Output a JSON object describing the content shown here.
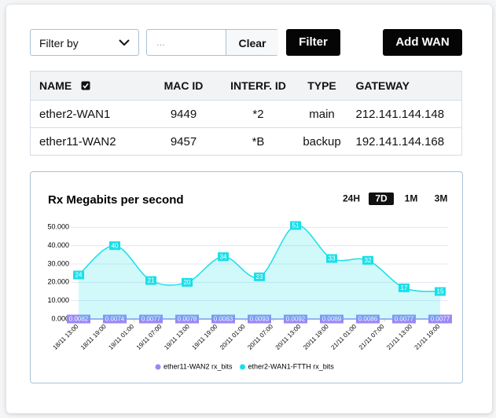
{
  "toolbar": {
    "filter_select": "Filter by",
    "search_placeholder": "...",
    "clear": "Clear",
    "filter": "Filter",
    "add": "Add WAN"
  },
  "table": {
    "columns": [
      "NAME",
      "MAC ID",
      "INTERF. ID",
      "TYPE",
      "GATEWAY"
    ],
    "rows": [
      [
        "ether2-WAN1",
        "9449",
        "*2",
        "main",
        "212.141.144.148"
      ],
      [
        "ether11-WAN2",
        "9457",
        "*B",
        "backup",
        "192.141.144.168"
      ]
    ]
  },
  "chart_data": {
    "type": "area",
    "title": "Rx Megabits per second",
    "ranges": [
      "24H",
      "7D",
      "1M",
      "3M"
    ],
    "selected_range": "7D",
    "x": [
      0,
      7.8,
      15.6,
      23.4,
      31.2,
      39,
      46.8,
      54.6,
      62.4,
      70.2,
      78
    ],
    "series": [
      {
        "name": "ether11-WAN2 rx_bits",
        "color": "#9b87f5",
        "values": [
          0.0082,
          0.0074,
          0.0077,
          0.0078,
          0.0083,
          0.0093,
          0.0092,
          0.0089,
          0.0086,
          0.0077,
          0.0077
        ]
      },
      {
        "name": "ether2-WAN1-FTTH rx_bits",
        "color": "#19dfe8",
        "values": [
          24,
          40,
          21,
          20,
          34,
          23,
          51,
          33,
          32,
          17,
          15
        ]
      }
    ],
    "xlim": [
      -1.7,
      79.7
    ],
    "xticks": [
      {
        "value": 0,
        "label": "18/11 13:00"
      },
      {
        "value": 6,
        "label": "18/11 19:00"
      },
      {
        "value": 12,
        "label": "19/11 01:00"
      },
      {
        "value": 18,
        "label": "19/11 07:00"
      },
      {
        "value": 24,
        "label": "19/11 13:00"
      },
      {
        "value": 30,
        "label": "19/11 19:00"
      },
      {
        "value": 36,
        "label": "20/11 01:00"
      },
      {
        "value": 42,
        "label": "20/11 07:00"
      },
      {
        "value": 48,
        "label": "20/11 13:00"
      },
      {
        "value": 54,
        "label": "20/11 19:00"
      },
      {
        "value": 60,
        "label": "21/11 01:00"
      },
      {
        "value": 66,
        "label": "21/11 07:00"
      },
      {
        "value": 72,
        "label": "21/11 13:00"
      },
      {
        "value": 78,
        "label": "21/11 19:00"
      }
    ],
    "ylim": [
      0,
      54
    ],
    "yticks": [
      {
        "value": 0,
        "label": "0.000"
      },
      {
        "value": 10,
        "label": "10.000"
      },
      {
        "value": 20,
        "label": "20.000"
      },
      {
        "value": 30,
        "label": "30.000"
      },
      {
        "value": 40,
        "label": "40.000"
      },
      {
        "value": 50,
        "label": "50.000"
      }
    ],
    "grid": true,
    "legend": "bottom"
  }
}
